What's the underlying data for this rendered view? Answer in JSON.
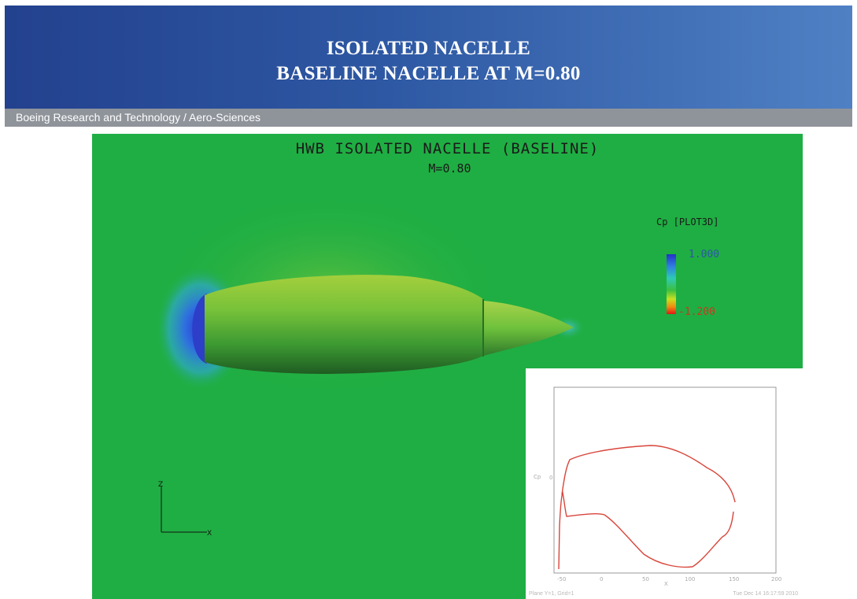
{
  "header": {
    "title_line1": "ISOLATED NACELLE",
    "title_line2": "BASELINE NACELLE AT M=0.80",
    "org": "Boeing Research and Technology / Aero-Sciences"
  },
  "plot": {
    "title": "HWB ISOLATED NACELLE (BASELINE)",
    "subtitle": "M=0.80",
    "colorbar": {
      "title": "Cp [PLOT3D]",
      "max_label": "1.000",
      "min_label": "-1.200"
    },
    "axes_triad": {
      "vertical": "Z",
      "horizontal": "X"
    }
  },
  "inset": {
    "footer_left": "Plane Y=1, Grid=1",
    "footer_right": "Tue Dec 14 16:17:59 2010",
    "x_ticks": [
      "-50",
      "0",
      "50",
      "100",
      "150",
      "200"
    ],
    "x_label": "X",
    "y_label": "Cp",
    "y_tick": "0"
  },
  "colors": {
    "header": "#2e58a3",
    "subbar": "#8f949b",
    "field": "#1fae43",
    "cp_curve": "#d8453b"
  }
}
